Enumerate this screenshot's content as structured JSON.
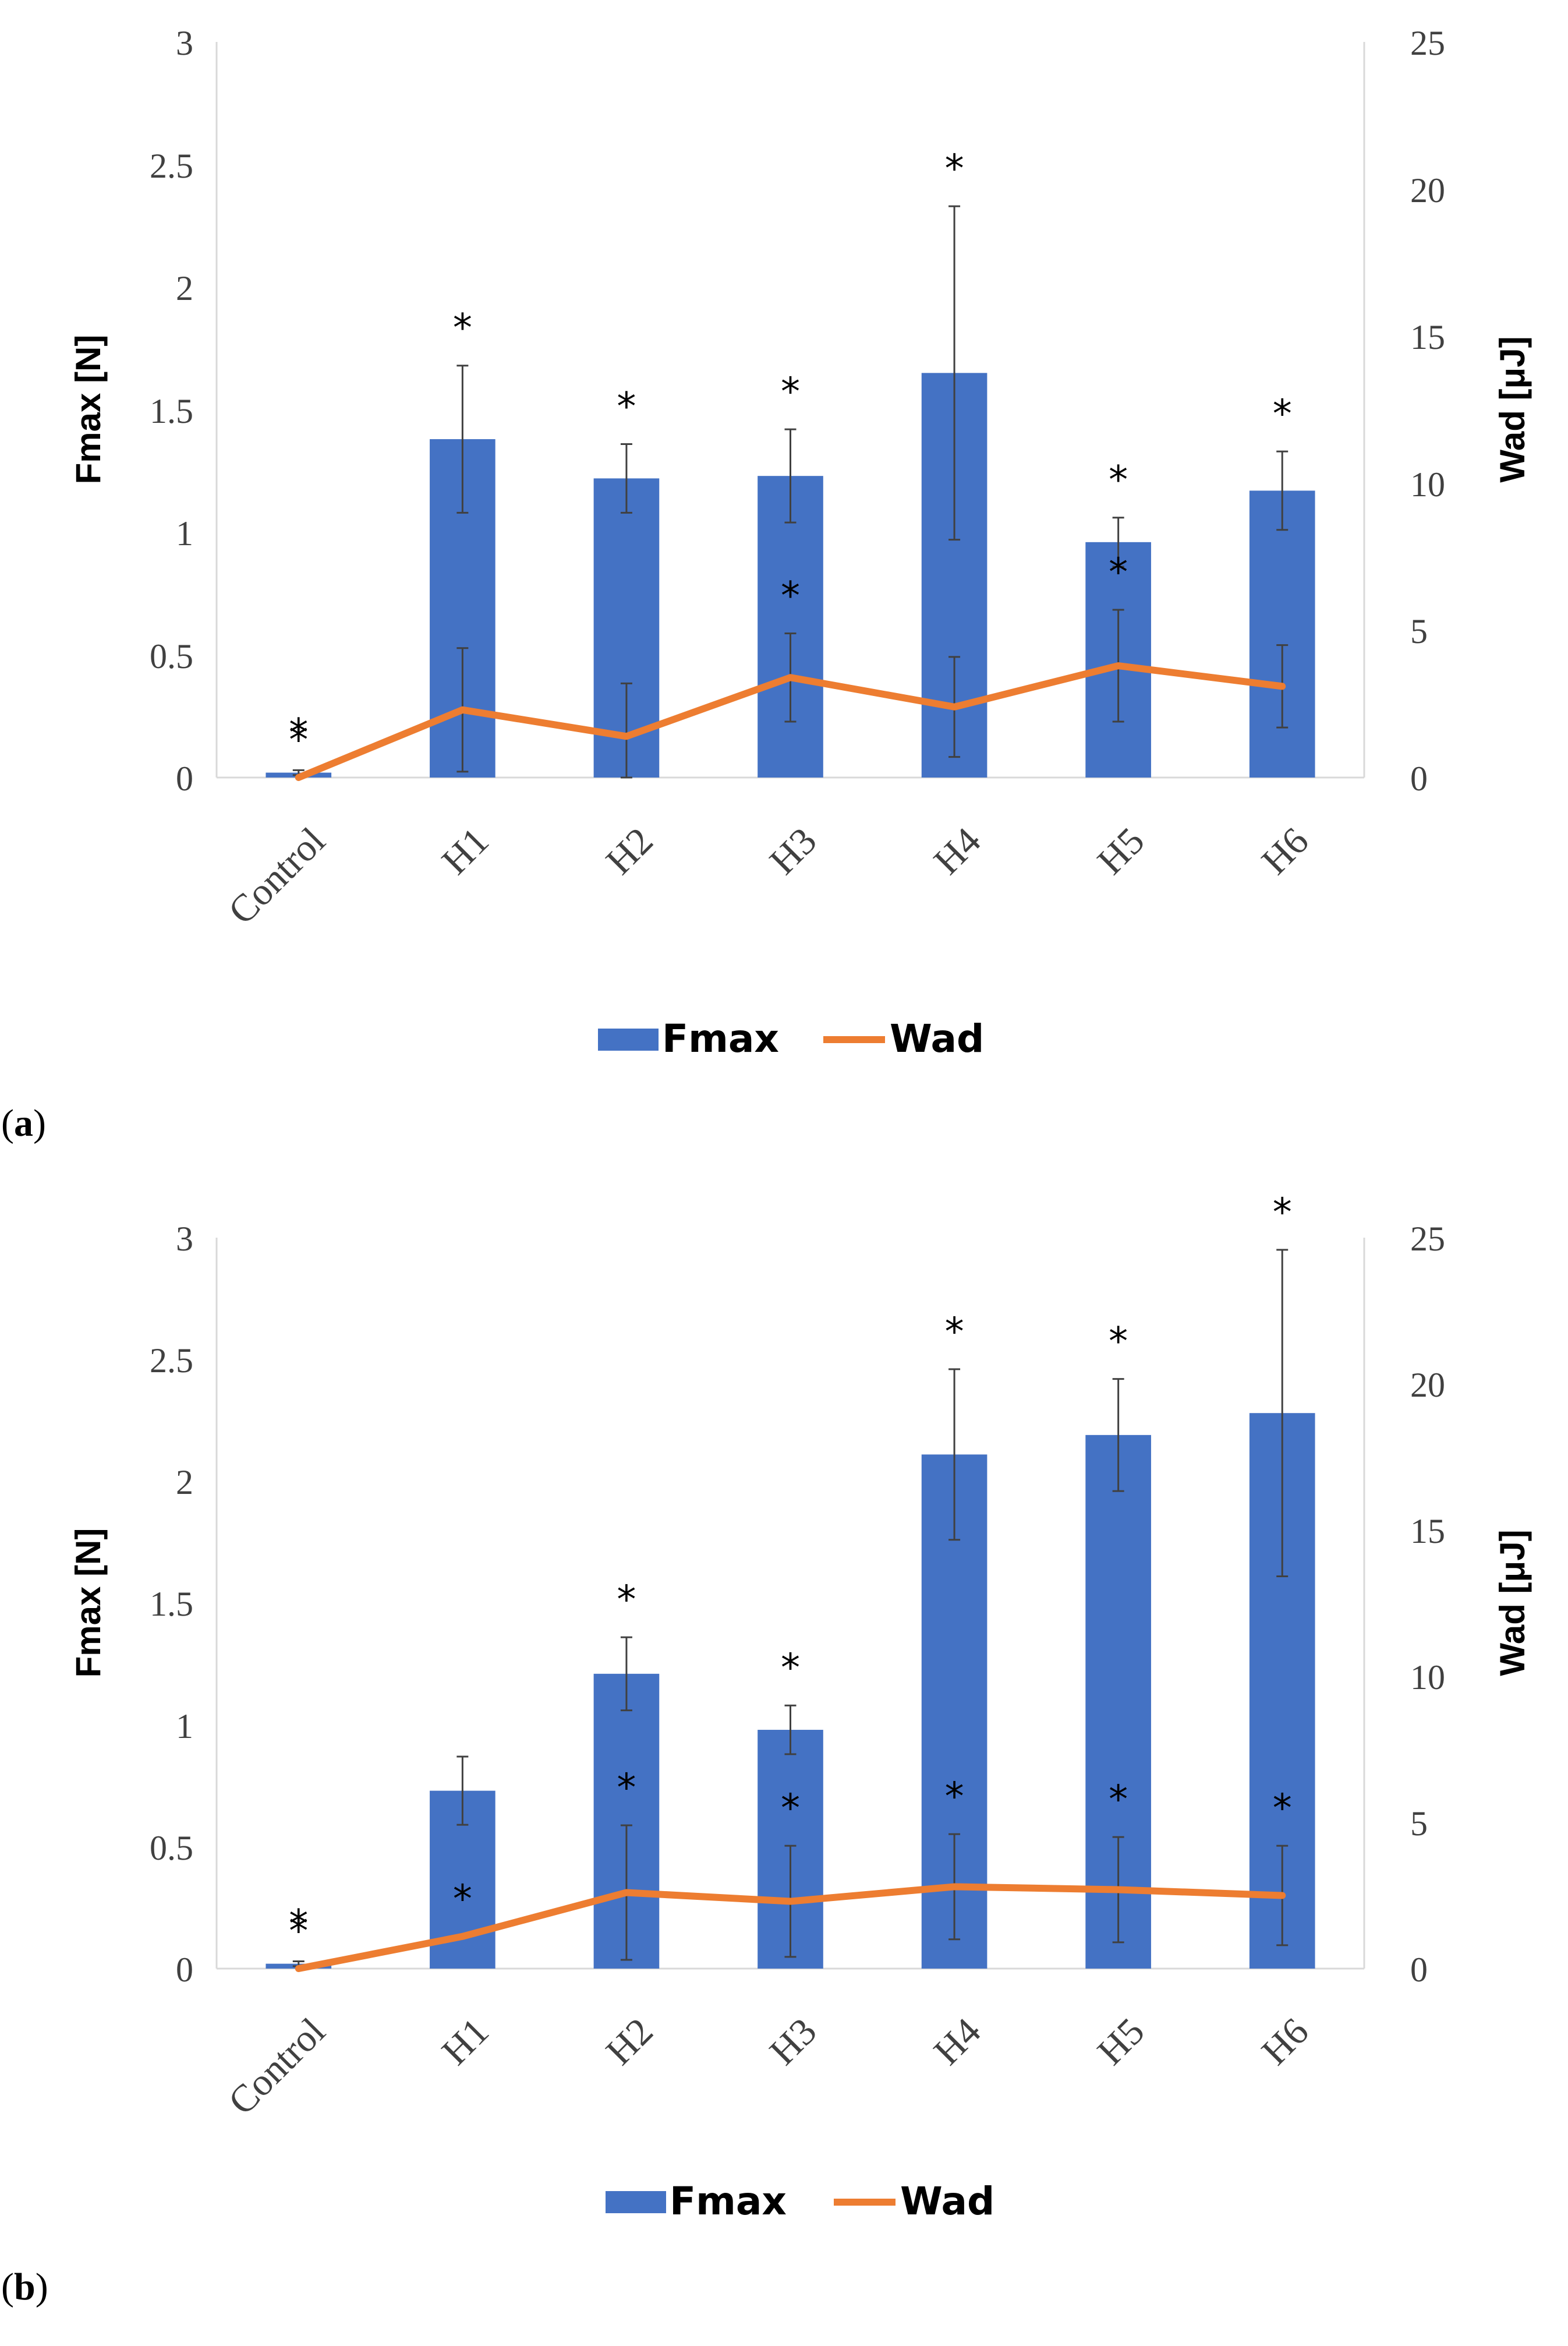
{
  "colors": {
    "bar": "#4472C4",
    "line": "#ED7D31",
    "error": "#404040",
    "axis": "#D9D9D9"
  },
  "chart_data": [
    {
      "type": "bar+line",
      "panel": "a",
      "panel_label": "a",
      "categories": [
        "Control",
        "H1",
        "H2",
        "H3",
        "H4",
        "H5",
        "H6"
      ],
      "series": [
        {
          "name": "Fmax",
          "type": "bar",
          "axis": "left",
          "values": [
            0.02,
            1.38,
            1.22,
            1.23,
            1.65,
            0.96,
            1.17
          ],
          "errors": [
            0.01,
            0.3,
            0.14,
            0.19,
            0.68,
            0.1,
            0.16
          ]
        },
        {
          "name": "Wad",
          "type": "line",
          "axis": "right",
          "values": [
            0.0,
            2.3,
            1.4,
            3.4,
            2.4,
            3.8,
            3.1
          ],
          "errors": [
            0.0,
            2.1,
            1.8,
            1.5,
            1.7,
            1.9,
            1.4
          ]
        }
      ],
      "bar_stars": [
        "*",
        "*",
        "*",
        "*",
        "*",
        "*",
        "*"
      ],
      "line_stars": [
        "*",
        "",
        "",
        "*",
        "",
        "*",
        ""
      ],
      "ylabel": "Fmax [N]",
      "y2label": "Wad [μJ]",
      "ylim": [
        0,
        3
      ],
      "y2lim": [
        0,
        25
      ],
      "yticks": [
        "0",
        "0.5",
        "1",
        "1.5",
        "2",
        "2.5",
        "3"
      ],
      "y2ticks": [
        "0",
        "5",
        "10",
        "15",
        "20",
        "25"
      ],
      "legend": [
        "Fmax",
        "Wad"
      ]
    },
    {
      "type": "bar+line",
      "panel": "b",
      "panel_label": "b",
      "categories": [
        "Control",
        "H1",
        "H2",
        "H3",
        "H4",
        "H5",
        "H6"
      ],
      "series": [
        {
          "name": "Fmax",
          "type": "bar",
          "axis": "left",
          "values": [
            0.02,
            0.73,
            1.21,
            0.98,
            2.11,
            2.19,
            2.28
          ],
          "errors": [
            0.01,
            0.14,
            0.15,
            0.1,
            0.35,
            0.23,
            0.67
          ]
        },
        {
          "name": "Wad",
          "type": "line",
          "axis": "right",
          "values": [
            0.0,
            1.1,
            2.6,
            2.3,
            2.8,
            2.7,
            2.5
          ],
          "errors": [
            0.0,
            0.0,
            2.3,
            1.9,
            1.8,
            1.8,
            1.7
          ]
        }
      ],
      "bar_stars": [
        "*",
        "",
        "*",
        "*",
        "*",
        "*",
        "*"
      ],
      "line_stars": [
        "*",
        "*",
        "*",
        "*",
        "*",
        "*",
        "*"
      ],
      "ylabel": "Fmax [N]",
      "y2label": "Wad [μJ]",
      "ylim": [
        0,
        3
      ],
      "y2lim": [
        0,
        25
      ],
      "yticks": [
        "0",
        "0.5",
        "1",
        "1.5",
        "2",
        "2.5",
        "3"
      ],
      "y2ticks": [
        "0",
        "5",
        "10",
        "15",
        "20",
        "25"
      ],
      "legend": [
        "Fmax",
        "Wad"
      ]
    }
  ]
}
